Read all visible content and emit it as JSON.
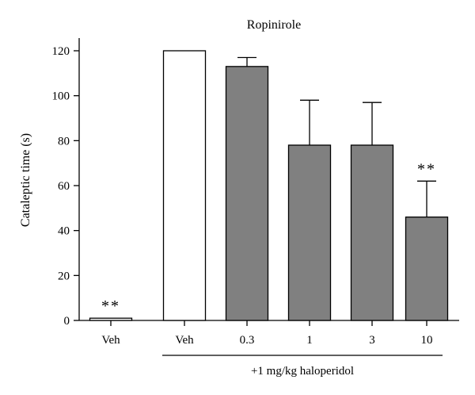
{
  "chart_data": {
    "type": "bar",
    "title": "Ropinirole",
    "ylabel": "Cataleptic time (s)",
    "xlabel": "",
    "ylim": [
      0,
      120
    ],
    "yticks": [
      0,
      20,
      40,
      60,
      80,
      100,
      120
    ],
    "grid": false,
    "categories": [
      "Veh",
      "Veh",
      "0.3",
      "1",
      "3",
      "10"
    ],
    "values": [
      1,
      120,
      113,
      78,
      78,
      46
    ],
    "error_upper": [
      0,
      0,
      4,
      20,
      19,
      16
    ],
    "fill_colors": [
      "#ffffff",
      "#ffffff",
      "#808080",
      "#808080",
      "#808080",
      "#808080"
    ],
    "significance": [
      "**",
      "",
      "",
      "",
      "",
      "**"
    ],
    "group_bracket": {
      "label": "+1 mg/kg haloperidol",
      "from_index": 1,
      "to_index": 5
    }
  }
}
